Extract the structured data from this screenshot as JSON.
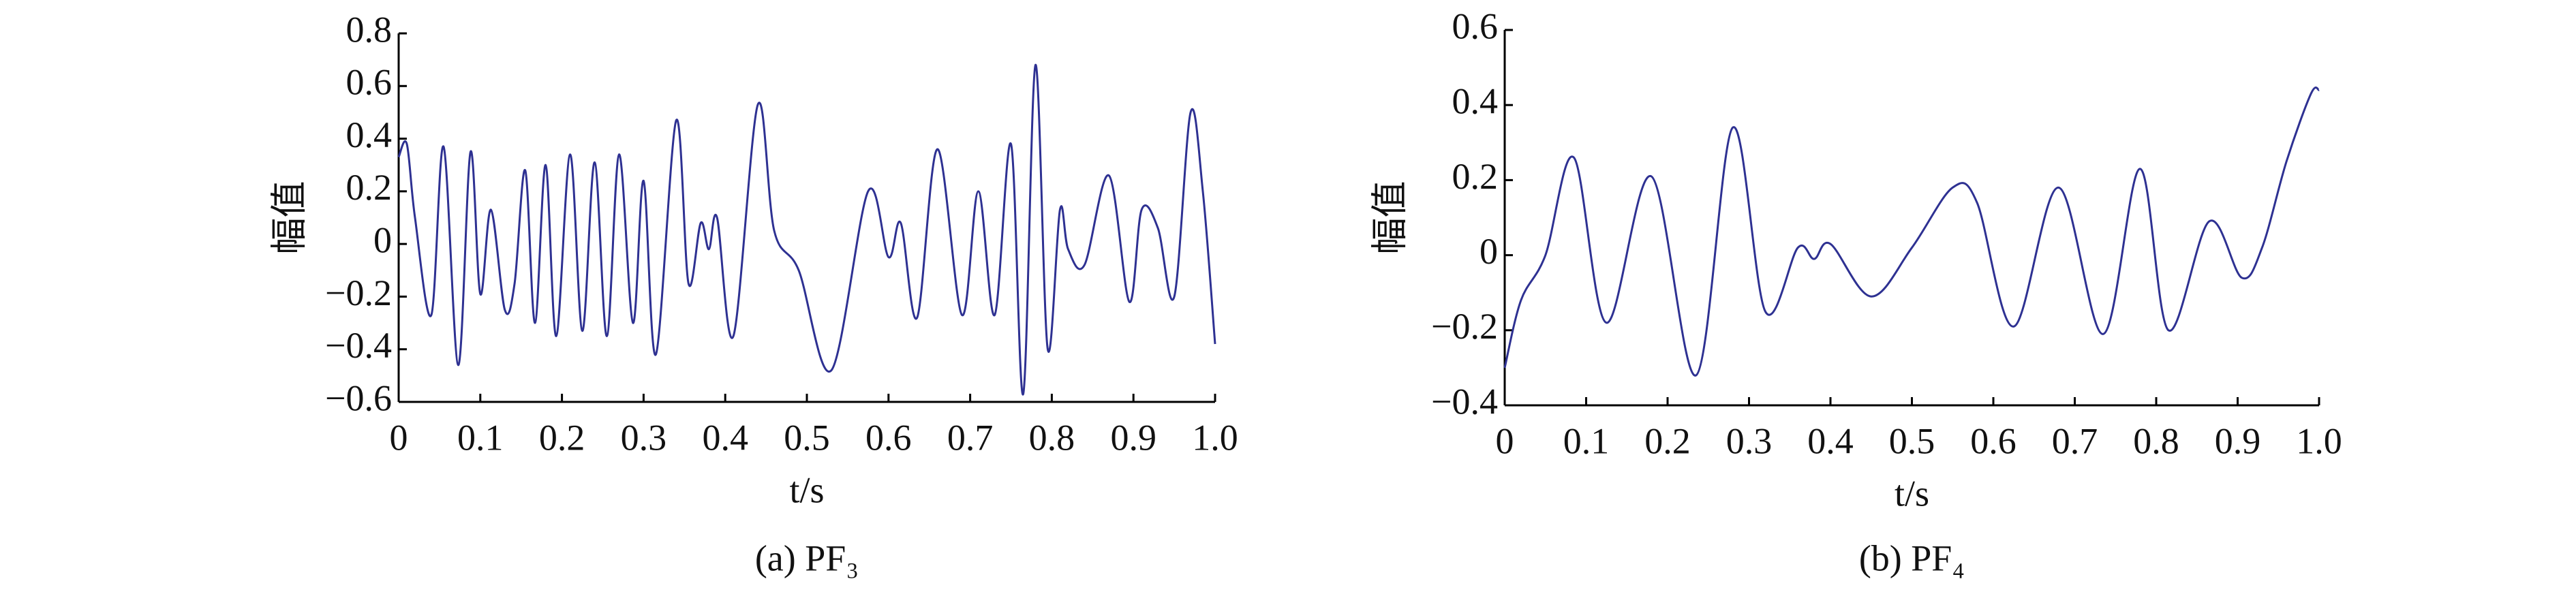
{
  "chart_data": [
    {
      "type": "line",
      "title": "(a) PF₃",
      "x_label": "t/s",
      "y_label": "幅值",
      "color": "#2e3192",
      "x": [
        0,
        0.01,
        0.02,
        0.04,
        0.055,
        0.073,
        0.088,
        0.1,
        0.113,
        0.13,
        0.142,
        0.155,
        0.167,
        0.18,
        0.193,
        0.21,
        0.225,
        0.24,
        0.255,
        0.27,
        0.287,
        0.3,
        0.315,
        0.34,
        0.355,
        0.37,
        0.38,
        0.39,
        0.41,
        0.44,
        0.46,
        0.49,
        0.53,
        0.575,
        0.6,
        0.615,
        0.635,
        0.66,
        0.69,
        0.71,
        0.73,
        0.75,
        0.765,
        0.78,
        0.795,
        0.81,
        0.82,
        0.84,
        0.87,
        0.895,
        0.91,
        0.93,
        0.95,
        0.97,
        0.985,
        1
      ],
      "values": [
        0.33,
        0.38,
        0.1,
        -0.27,
        0.37,
        -0.46,
        0.35,
        -0.19,
        0.13,
        -0.25,
        -0.15,
        0.28,
        -0.3,
        0.3,
        -0.35,
        0.34,
        -0.33,
        0.31,
        -0.35,
        0.34,
        -0.3,
        0.24,
        -0.42,
        0.47,
        -0.15,
        0.08,
        -0.02,
        0.1,
        -0.35,
        0.53,
        0.05,
        -0.1,
        -0.48,
        0.2,
        -0.05,
        0.08,
        -0.28,
        0.36,
        -0.27,
        0.2,
        -0.27,
        0.38,
        -0.57,
        0.68,
        -0.4,
        0.13,
        -0.02,
        -0.08,
        0.26,
        -0.22,
        0.13,
        0.06,
        -0.2,
        0.5,
        0.2,
        -0.38
      ],
      "xlim": [
        0,
        1
      ],
      "ylim": [
        -0.6,
        0.8
      ],
      "xticks": [
        0,
        0.1,
        0.2,
        0.3,
        0.4,
        0.5,
        0.6,
        0.7,
        0.8,
        0.9,
        {
          "value": 1,
          "label": "1.0"
        }
      ],
      "yticks": [
        {
          "value": -0.6,
          "label": "−0.6"
        },
        {
          "value": -0.4,
          "label": "−0.4"
        },
        {
          "value": -0.2,
          "label": "−0.2"
        },
        0,
        0.2,
        0.4,
        0.6,
        0.8
      ]
    },
    {
      "type": "line",
      "title": "(b) PF₄",
      "x_label": "t/s",
      "y_label": "幅值",
      "color": "#2e3192",
      "x": [
        0,
        0.02,
        0.05,
        0.085,
        0.125,
        0.18,
        0.235,
        0.28,
        0.32,
        0.36,
        0.38,
        0.4,
        0.45,
        0.5,
        0.55,
        0.58,
        0.625,
        0.68,
        0.735,
        0.78,
        0.815,
        0.865,
        0.905,
        0.93,
        0.96,
        0.99,
        1
      ],
      "values": [
        -0.3,
        -0.12,
        0.0,
        0.26,
        -0.18,
        0.21,
        -0.32,
        0.34,
        -0.15,
        0.02,
        -0.01,
        0.03,
        -0.11,
        0.02,
        0.18,
        0.14,
        -0.19,
        0.18,
        -0.21,
        0.23,
        -0.2,
        0.09,
        -0.06,
        0.02,
        0.25,
        0.43,
        0.44
      ],
      "xlim": [
        0,
        1
      ],
      "ylim": [
        -0.4,
        0.6
      ],
      "xticks": [
        0,
        0.1,
        0.2,
        0.3,
        0.4,
        0.5,
        0.6,
        0.7,
        0.8,
        0.9,
        {
          "value": 1,
          "label": "1.0"
        }
      ],
      "yticks": [
        {
          "value": -0.4,
          "label": "−0.4"
        },
        {
          "value": -0.2,
          "label": "−0.2"
        },
        0,
        0.2,
        0.4,
        0.6
      ]
    }
  ]
}
